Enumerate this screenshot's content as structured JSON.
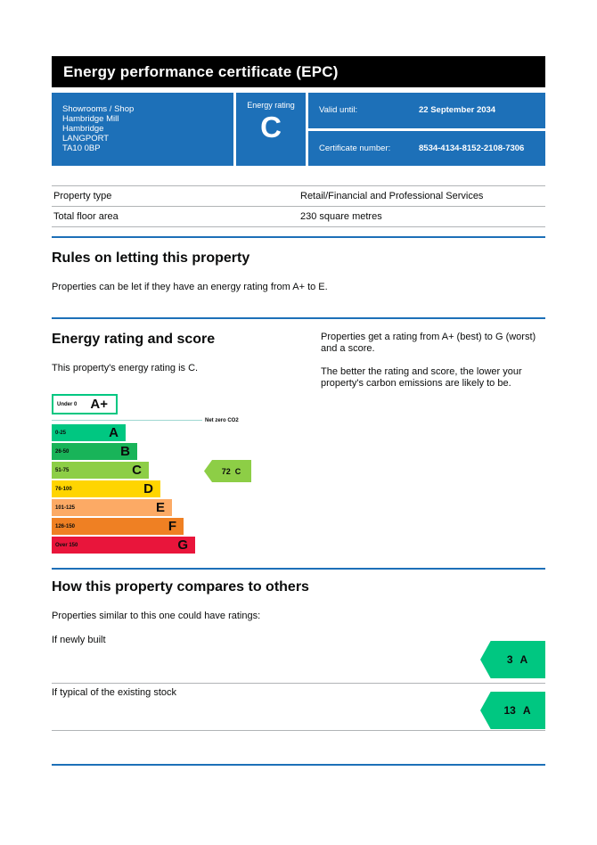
{
  "header": {
    "title": "Energy performance certificate (EPC)"
  },
  "summary": {
    "address_lines": [
      "Showrooms / Shop",
      "Hambridge Mill",
      "Hambridge",
      "LANGPORT",
      "TA10 0BP"
    ],
    "energy_rating_label": "Energy rating",
    "energy_rating": "C",
    "valid_until_label": "Valid until:",
    "valid_until_value": "22 September 2034",
    "certificate_number_label": "Certificate number:",
    "certificate_number_value": "8534-4134-8152-2108-7306"
  },
  "property_details": {
    "rows": [
      {
        "label": "Property type",
        "value": "Retail/Financial and Professional Services"
      },
      {
        "label": "Total floor area",
        "value": "230 square metres"
      }
    ]
  },
  "rules": {
    "heading": "Rules on letting this property",
    "body": "Properties can be let if they have an energy rating from A+ to E."
  },
  "rating_section": {
    "heading": "Energy rating and score",
    "current_rating_text": "This property's energy rating is C.",
    "explain_1": "Properties get a rating from A+ (best) to G (worst) and a score.",
    "explain_2": "The better the rating and score, the lower your property's carbon emissions are likely to be."
  },
  "chart_data": {
    "type": "bar",
    "title": "Energy rating and score",
    "bands": [
      {
        "grade": "A+",
        "range": "Under 0",
        "color": "#00c781",
        "outline_only": true
      },
      {
        "grade": "A",
        "range": "0-25",
        "color": "#00c781"
      },
      {
        "grade": "B",
        "range": "26-50",
        "color": "#19b459"
      },
      {
        "grade": "C",
        "range": "51-75",
        "color": "#8dce46"
      },
      {
        "grade": "D",
        "range": "76-100",
        "color": "#ffd500"
      },
      {
        "grade": "E",
        "range": "101-125",
        "color": "#fcaa65"
      },
      {
        "grade": "F",
        "range": "126-150",
        "color": "#ef8023"
      },
      {
        "grade": "G",
        "range": "Over 150",
        "color": "#e9153b"
      }
    ],
    "net_zero_label": "Net zero CO2",
    "current": {
      "score": "72",
      "grade": "C",
      "color": "#8dce46"
    },
    "legend_position": "none",
    "grid": false
  },
  "compare_section": {
    "heading": "How this property compares to others",
    "intro": "Properties similar to this one could have ratings:",
    "rows": [
      {
        "label": "If newly built",
        "score": "3",
        "grade": "A"
      },
      {
        "label": "If typical of the existing stock",
        "score": "13",
        "grade": "A"
      }
    ],
    "arrow_color": "#00c781"
  },
  "colors": {
    "govuk_blue": "#1d70b8",
    "header_black": "#000000",
    "divider_gray": "#b1b4b6",
    "text": "#0b0c0c",
    "net_zero_line": "#9fd8d2"
  }
}
